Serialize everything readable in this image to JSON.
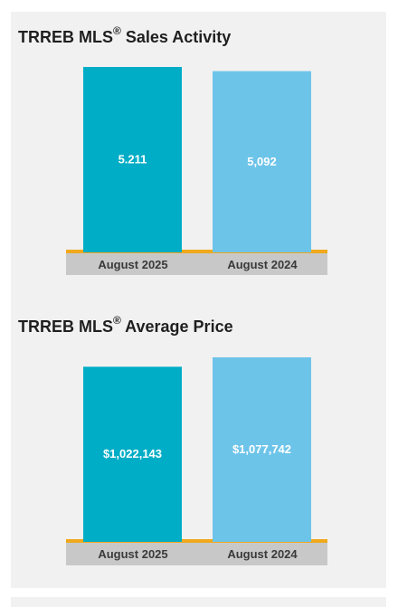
{
  "chart_data": [
    {
      "type": "bar",
      "title": "TRREB MLS",
      "title_mark": "®",
      "title_suffix": " Sales Activity",
      "categories": [
        "August 2025",
        "August 2024"
      ],
      "values": [
        5211,
        5092
      ],
      "value_labels": [
        "5.211",
        "5,092"
      ],
      "colors": [
        "#00adc6",
        "#6dc4e9"
      ]
    },
    {
      "type": "bar",
      "title": "TRREB MLS",
      "title_mark": "®",
      "title_suffix": " Average Price",
      "categories": [
        "August 2025",
        "August 2024"
      ],
      "values": [
        1022143,
        1077742
      ],
      "value_labels": [
        "$1,022,143",
        "$1,077,742"
      ],
      "colors": [
        "#00adc6",
        "#6dc4e9"
      ]
    }
  ],
  "colors": {
    "panel": "#f1f1f1",
    "axis_band": "#c8c8c8",
    "accent_line": "#f0a81c"
  }
}
